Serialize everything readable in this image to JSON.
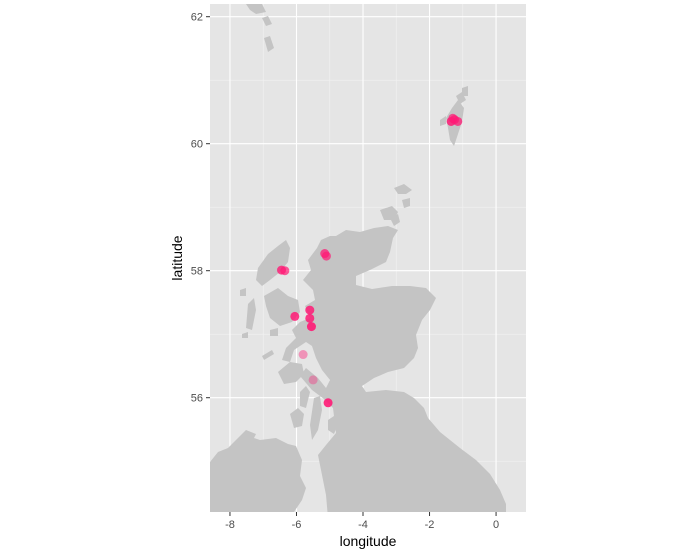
{
  "chart_data": {
    "type": "scatter",
    "title": "",
    "xlabel": "longitude",
    "ylabel": "latitude",
    "xlim": [
      -8.6,
      0.9
    ],
    "ylim": [
      54.2,
      62.2
    ],
    "x_ticks": [
      -8,
      -6,
      -4,
      -2,
      0
    ],
    "y_ticks": [
      56,
      58,
      60,
      62
    ],
    "x_tick_labels": [
      "-8",
      "-6",
      "-4",
      "-2",
      "0"
    ],
    "y_tick_labels": [
      "56",
      "58",
      "60",
      "62"
    ],
    "grid": true,
    "legend": "none",
    "panel_color": "#e5e5e5",
    "land_color": "#c4c4c4",
    "point_color": "#ff1a75",
    "background_layer": "map of Scotland (mainland, Hebrides, Orkney, Shetland)",
    "points": [
      {
        "lon": -6.45,
        "lat": 58.01,
        "opacity": 0.8
      },
      {
        "lon": -6.35,
        "lat": 58.0,
        "opacity": 0.7
      },
      {
        "lon": -5.15,
        "lat": 58.27,
        "opacity": 0.75
      },
      {
        "lon": -5.1,
        "lat": 58.23,
        "opacity": 0.7
      },
      {
        "lon": -6.05,
        "lat": 57.28,
        "opacity": 0.85
      },
      {
        "lon": -5.6,
        "lat": 57.38,
        "opacity": 0.85
      },
      {
        "lon": -5.6,
        "lat": 57.25,
        "opacity": 0.85
      },
      {
        "lon": -5.55,
        "lat": 57.12,
        "opacity": 0.9
      },
      {
        "lon": -5.8,
        "lat": 56.68,
        "opacity": 0.4
      },
      {
        "lon": -5.5,
        "lat": 56.28,
        "opacity": 0.35
      },
      {
        "lon": -5.05,
        "lat": 55.92,
        "opacity": 0.9
      },
      {
        "lon": -1.35,
        "lat": 60.35,
        "opacity": 0.85
      },
      {
        "lon": -1.25,
        "lat": 60.38,
        "opacity": 0.8
      },
      {
        "lon": -1.15,
        "lat": 60.35,
        "opacity": 0.75
      },
      {
        "lon": -1.3,
        "lat": 60.4,
        "opacity": 0.7
      }
    ]
  }
}
